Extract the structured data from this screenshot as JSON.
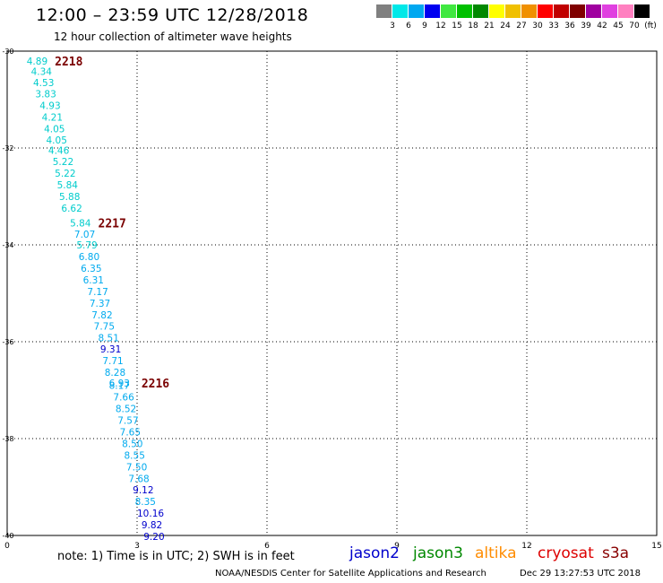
{
  "header": {
    "title": "12:00 – 23:59 UTC 12/28/2018",
    "subtitle": "12 hour collection of altimeter wave heights"
  },
  "colorbar": {
    "labels": [
      "3",
      "6",
      "9",
      "12",
      "15",
      "18",
      "21",
      "24",
      "27",
      "30",
      "33",
      "36",
      "39",
      "42",
      "45",
      "70",
      "(ft)"
    ],
    "colors": [
      "#808080",
      "#00e8e8",
      "#00a8f0",
      "#0000f0",
      "#40e840",
      "#00c000",
      "#008800",
      "#ffff00",
      "#f0c000",
      "#f09000",
      "#ff0000",
      "#c00000",
      "#800000",
      "#a000a0",
      "#e040e0",
      "#ff80c0",
      "#000000"
    ]
  },
  "footer": {
    "note": "note:  1) Time is in UTC;  2) SWH is in feet",
    "missions": [
      {
        "label": "jason2",
        "color": "#0000cc"
      },
      {
        "label": "jason3",
        "color": "#008800"
      },
      {
        "label": "altika",
        "color": "#ff8c00"
      },
      {
        "label": "cryosat",
        "color": "#dd0000"
      },
      {
        "label": "s3a",
        "color": "#880000"
      }
    ],
    "credit": "NOAA/NESDIS Center for Satellite Applications and Research",
    "timestamp": "Dec 29 13:27:53 UTC 2018"
  },
  "chart_data": {
    "type": "scatter",
    "title": "12:00 – 23:59 UTC 12/28/2018",
    "xlim": [
      0,
      15
    ],
    "ylim": [
      -40,
      -30
    ],
    "x_ticks": [
      "0",
      "3",
      "6",
      "9",
      "12",
      "15"
    ],
    "y_ticks": [
      "-30",
      "-32",
      "-34",
      "-36",
      "-38",
      "-40"
    ],
    "grid": true,
    "time_labels": [
      {
        "text": "2218",
        "x": 1.1,
        "y": -30.2
      },
      {
        "text": "2217",
        "x": 2.1,
        "y": -33.55
      },
      {
        "text": "2216",
        "x": 3.1,
        "y": -36.85
      }
    ],
    "points": [
      {
        "x": 0.45,
        "y": -30.2,
        "value": "4.89",
        "color": "#00cccc"
      },
      {
        "x": 0.55,
        "y": -30.42,
        "value": "4.34",
        "color": "#00cccc"
      },
      {
        "x": 0.6,
        "y": -30.65,
        "value": "4.53",
        "color": "#00cccc"
      },
      {
        "x": 0.65,
        "y": -30.88,
        "value": "3.83",
        "color": "#00cccc"
      },
      {
        "x": 0.75,
        "y": -31.12,
        "value": "4.93",
        "color": "#00cccc"
      },
      {
        "x": 0.8,
        "y": -31.36,
        "value": "4.21",
        "color": "#00cccc"
      },
      {
        "x": 0.85,
        "y": -31.6,
        "value": "4.05",
        "color": "#00cccc"
      },
      {
        "x": 0.9,
        "y": -31.83,
        "value": "4.05",
        "color": "#00cccc"
      },
      {
        "x": 0.95,
        "y": -32.05,
        "value": "4.46",
        "color": "#00cccc"
      },
      {
        "x": 1.05,
        "y": -32.28,
        "value": "5.22",
        "color": "#00cccc"
      },
      {
        "x": 1.1,
        "y": -32.52,
        "value": "5.22",
        "color": "#00cccc"
      },
      {
        "x": 1.15,
        "y": -32.76,
        "value": "5.84",
        "color": "#00cccc"
      },
      {
        "x": 1.2,
        "y": -33.0,
        "value": "5.88",
        "color": "#00cccc"
      },
      {
        "x": 1.25,
        "y": -33.24,
        "value": "6.62",
        "color": "#00cccc"
      },
      {
        "x": 1.45,
        "y": -33.55,
        "value": "5.84",
        "color": "#00cccc"
      },
      {
        "x": 1.55,
        "y": -33.78,
        "value": "7.07",
        "color": "#00aaee"
      },
      {
        "x": 1.6,
        "y": -34.0,
        "value": "5.79",
        "color": "#00cccc"
      },
      {
        "x": 1.65,
        "y": -34.24,
        "value": "6.80",
        "color": "#00aaee"
      },
      {
        "x": 1.7,
        "y": -34.48,
        "value": "6.35",
        "color": "#00aaee"
      },
      {
        "x": 1.75,
        "y": -34.72,
        "value": "6.31",
        "color": "#00aaee"
      },
      {
        "x": 1.85,
        "y": -34.96,
        "value": "7.17",
        "color": "#00aaee"
      },
      {
        "x": 1.9,
        "y": -35.2,
        "value": "7.37",
        "color": "#00aaee"
      },
      {
        "x": 1.95,
        "y": -35.44,
        "value": "7.82",
        "color": "#00aaee"
      },
      {
        "x": 2.0,
        "y": -35.68,
        "value": "7.75",
        "color": "#00aaee"
      },
      {
        "x": 2.1,
        "y": -35.92,
        "value": "8.51",
        "color": "#00aaee"
      },
      {
        "x": 2.15,
        "y": -36.15,
        "value": "9.31",
        "color": "#0000cc"
      },
      {
        "x": 2.2,
        "y": -36.39,
        "value": "7.71",
        "color": "#00aaee"
      },
      {
        "x": 2.25,
        "y": -36.63,
        "value": "8.28",
        "color": "#00aaee"
      },
      {
        "x": 2.35,
        "y": -36.85,
        "value": "6.93",
        "color": "#00aaee"
      },
      {
        "x": 2.35,
        "y": -36.9,
        "value": "8.17",
        "color": "#00aaee"
      },
      {
        "x": 2.45,
        "y": -37.14,
        "value": "7.66",
        "color": "#00aaee"
      },
      {
        "x": 2.5,
        "y": -37.38,
        "value": "8.52",
        "color": "#00aaee"
      },
      {
        "x": 2.55,
        "y": -37.62,
        "value": "7.57",
        "color": "#00aaee"
      },
      {
        "x": 2.6,
        "y": -37.86,
        "value": "7.65",
        "color": "#00aaee"
      },
      {
        "x": 2.65,
        "y": -38.1,
        "value": "8.50",
        "color": "#00aaee"
      },
      {
        "x": 2.7,
        "y": -38.34,
        "value": "8.55",
        "color": "#00aaee"
      },
      {
        "x": 2.75,
        "y": -38.58,
        "value": "7.50",
        "color": "#00aaee"
      },
      {
        "x": 2.8,
        "y": -38.82,
        "value": "7.68",
        "color": "#00aaee"
      },
      {
        "x": 2.9,
        "y": -39.06,
        "value": "9.12",
        "color": "#0000cc"
      },
      {
        "x": 2.95,
        "y": -39.3,
        "value": "8.35",
        "color": "#00aaee"
      },
      {
        "x": 3.0,
        "y": -39.54,
        "value": "10.16",
        "color": "#0000cc"
      },
      {
        "x": 3.1,
        "y": -39.78,
        "value": "9.82",
        "color": "#0000cc"
      },
      {
        "x": 3.15,
        "y": -40.02,
        "value": "9.20",
        "color": "#0000cc"
      }
    ]
  }
}
